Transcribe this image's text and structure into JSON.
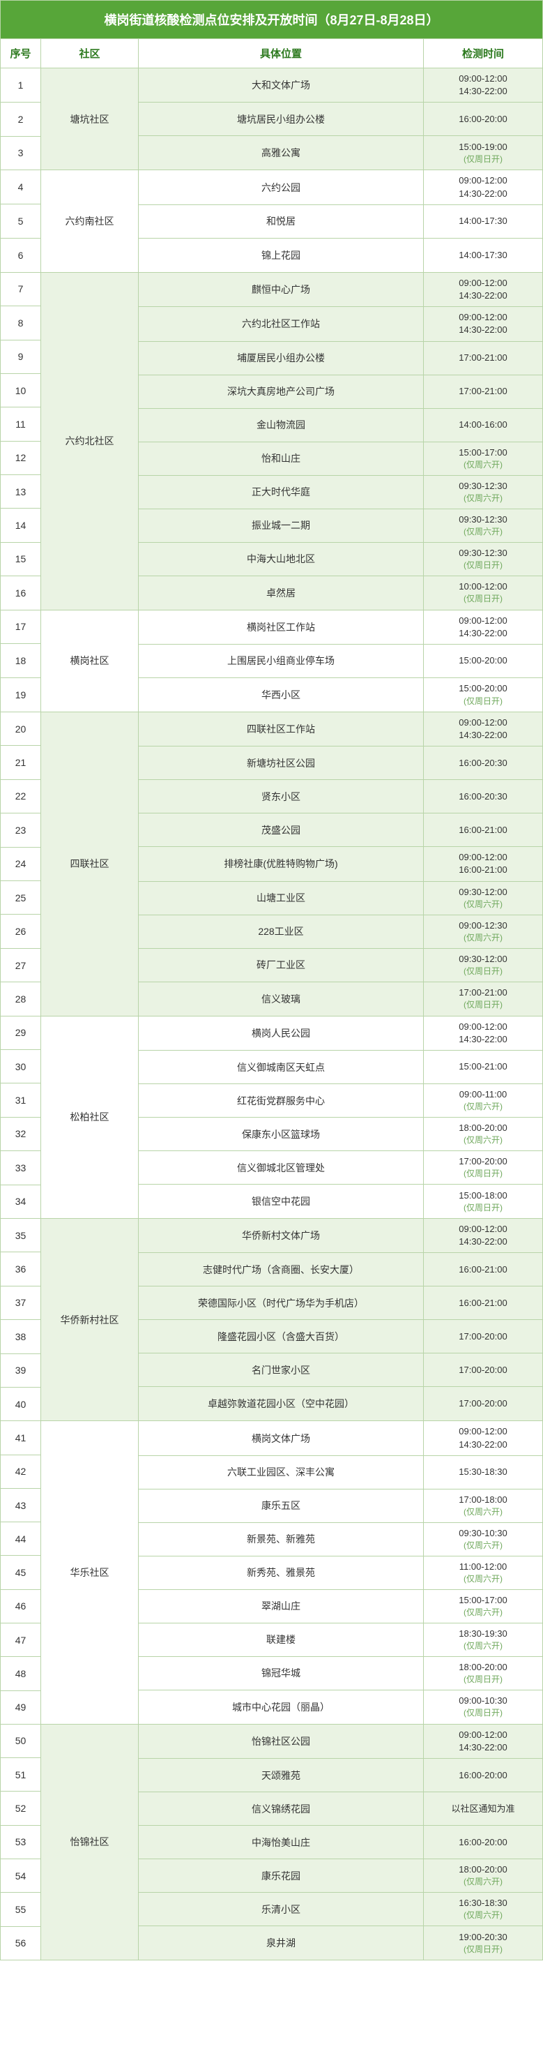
{
  "title": "横岗街道核酸检测点位安排及开放时间（8月27日-8月28日）",
  "colors": {
    "header_bg": "#57a639",
    "header_text": "#ffffff",
    "col_header_text": "#2d7a1f",
    "border": "#b8d4a8",
    "even_bg": "#eaf3e3",
    "odd_bg": "#ffffff",
    "note_text": "#6fa85c"
  },
  "columns": {
    "seq": "序号",
    "community": "社区",
    "location": "具体位置",
    "time": "检测时间"
  },
  "groups": [
    {
      "community": "塘坑社区",
      "bg": "even",
      "rows": [
        {
          "seq": 1,
          "location": "大和文体广场",
          "times": [
            "09:00-12:00",
            "14:30-22:00"
          ]
        },
        {
          "seq": 2,
          "location": "塘坑居民小组办公楼",
          "times": [
            "16:00-20:00"
          ]
        },
        {
          "seq": 3,
          "location": "高雅公寓",
          "times": [
            "15:00-19:00"
          ],
          "note": "(仅周日开)"
        }
      ]
    },
    {
      "community": "六约南社区",
      "bg": "odd",
      "rows": [
        {
          "seq": 4,
          "location": "六约公园",
          "times": [
            "09:00-12:00",
            "14:30-22:00"
          ]
        },
        {
          "seq": 5,
          "location": "和悦居",
          "times": [
            "14:00-17:30"
          ]
        },
        {
          "seq": 6,
          "location": "锦上花园",
          "times": [
            "14:00-17:30"
          ]
        }
      ]
    },
    {
      "community": "六约北社区",
      "bg": "even",
      "rows": [
        {
          "seq": 7,
          "location": "麒恒中心广场",
          "times": [
            "09:00-12:00",
            "14:30-22:00"
          ]
        },
        {
          "seq": 8,
          "location": "六约北社区工作站",
          "times": [
            "09:00-12:00",
            "14:30-22:00"
          ]
        },
        {
          "seq": 9,
          "location": "埔厦居民小组办公楼",
          "times": [
            "17:00-21:00"
          ]
        },
        {
          "seq": 10,
          "location": "深坑大真房地产公司广场",
          "times": [
            "17:00-21:00"
          ]
        },
        {
          "seq": 11,
          "location": "金山物流园",
          "times": [
            "14:00-16:00"
          ]
        },
        {
          "seq": 12,
          "location": "怡和山庄",
          "times": [
            "15:00-17:00"
          ],
          "note": "(仅周六开)"
        },
        {
          "seq": 13,
          "location": "正大时代华庭",
          "times": [
            "09:30-12:30"
          ],
          "note": "(仅周六开)"
        },
        {
          "seq": 14,
          "location": "振业城一二期",
          "times": [
            "09:30-12:30"
          ],
          "note": "(仅周六开)"
        },
        {
          "seq": 15,
          "location": "中海大山地北区",
          "times": [
            "09:30-12:30"
          ],
          "note": "(仅周日开)"
        },
        {
          "seq": 16,
          "location": "卓然居",
          "times": [
            "10:00-12:00"
          ],
          "note": "(仅周日开)"
        }
      ]
    },
    {
      "community": "横岗社区",
      "bg": "odd",
      "rows": [
        {
          "seq": 17,
          "location": "横岗社区工作站",
          "times": [
            "09:00-12:00",
            "14:30-22:00"
          ]
        },
        {
          "seq": 18,
          "location": "上围居民小组商业停车场",
          "times": [
            "15:00-20:00"
          ]
        },
        {
          "seq": 19,
          "location": "华西小区",
          "times": [
            "15:00-20:00"
          ],
          "note": "(仅周日开)"
        }
      ]
    },
    {
      "community": "四联社区",
      "bg": "even",
      "rows": [
        {
          "seq": 20,
          "location": "四联社区工作站",
          "times": [
            "09:00-12:00",
            "14:30-22:00"
          ]
        },
        {
          "seq": 21,
          "location": "新塘坊社区公园",
          "times": [
            "16:00-20:30"
          ]
        },
        {
          "seq": 22,
          "location": "贤东小区",
          "times": [
            "16:00-20:30"
          ]
        },
        {
          "seq": 23,
          "location": "茂盛公园",
          "times": [
            "16:00-21:00"
          ]
        },
        {
          "seq": 24,
          "location": "排榜社康(优胜特购物广场)",
          "times": [
            "09:00-12:00",
            "16:00-21:00"
          ]
        },
        {
          "seq": 25,
          "location": "山塘工业区",
          "times": [
            "09:30-12:00"
          ],
          "note": "(仅周六开)"
        },
        {
          "seq": 26,
          "location": "228工业区",
          "times": [
            "09:00-12:30"
          ],
          "note": "(仅周六开)"
        },
        {
          "seq": 27,
          "location": "砖厂工业区",
          "times": [
            "09:30-12:00"
          ],
          "note": "(仅周日开)"
        },
        {
          "seq": 28,
          "location": "信义玻璃",
          "times": [
            "17:00-21:00"
          ],
          "note": "(仅周日开)"
        }
      ]
    },
    {
      "community": "松柏社区",
      "bg": "odd",
      "rows": [
        {
          "seq": 29,
          "location": "横岗人民公园",
          "times": [
            "09:00-12:00",
            "14:30-22:00"
          ]
        },
        {
          "seq": 30,
          "location": "信义御城南区天虹点",
          "times": [
            "15:00-21:00"
          ]
        },
        {
          "seq": 31,
          "location": "红花街党群服务中心",
          "times": [
            "09:00-11:00"
          ],
          "note": "(仅周六开)"
        },
        {
          "seq": 32,
          "location": "保康东小区篮球场",
          "times": [
            "18:00-20:00"
          ],
          "note": "(仅周六开)"
        },
        {
          "seq": 33,
          "location": "信义御城北区管理处",
          "times": [
            "17:00-20:00"
          ],
          "note": "(仅周日开)"
        },
        {
          "seq": 34,
          "location": "银信空中花园",
          "times": [
            "15:00-18:00"
          ],
          "note": "(仅周日开)"
        }
      ]
    },
    {
      "community": "华侨新村社区",
      "bg": "even",
      "rows": [
        {
          "seq": 35,
          "location": "华侨新村文体广场",
          "times": [
            "09:00-12:00",
            "14:30-22:00"
          ]
        },
        {
          "seq": 36,
          "location": "志健时代广场（含商圈、长安大厦）",
          "times": [
            "16:00-21:00"
          ]
        },
        {
          "seq": 37,
          "location": "荣德国际小区（时代广场华为手机店）",
          "times": [
            "16:00-21:00"
          ]
        },
        {
          "seq": 38,
          "location": "隆盛花园小区（含盛大百货）",
          "times": [
            "17:00-20:00"
          ]
        },
        {
          "seq": 39,
          "location": "名门世家小区",
          "times": [
            "17:00-20:00"
          ]
        },
        {
          "seq": 40,
          "location": "卓越弥敦道花园小区（空中花园）",
          "times": [
            "17:00-20:00"
          ]
        }
      ]
    },
    {
      "community": "华乐社区",
      "bg": "odd",
      "rows": [
        {
          "seq": 41,
          "location": "横岗文体广场",
          "times": [
            "09:00-12:00",
            "14:30-22:00"
          ]
        },
        {
          "seq": 42,
          "location": "六联工业园区、深丰公寓",
          "times": [
            "15:30-18:30"
          ]
        },
        {
          "seq": 43,
          "location": "康乐五区",
          "times": [
            "17:00-18:00"
          ],
          "note": "(仅周六开)"
        },
        {
          "seq": 44,
          "location": "新景苑、新雅苑",
          "times": [
            "09:30-10:30"
          ],
          "note": "(仅周六开)"
        },
        {
          "seq": 45,
          "location": "新秀苑、雅景苑",
          "times": [
            "11:00-12:00"
          ],
          "note": "(仅周六开)"
        },
        {
          "seq": 46,
          "location": "翠湖山庄",
          "times": [
            "15:00-17:00"
          ],
          "note": "(仅周六开)"
        },
        {
          "seq": 47,
          "location": "联建楼",
          "times": [
            "18:30-19:30"
          ],
          "note": "(仅周六开)"
        },
        {
          "seq": 48,
          "location": "锦冠华城",
          "times": [
            "18:00-20:00"
          ],
          "note": "(仅周日开)"
        },
        {
          "seq": 49,
          "location": "城市中心花园（丽晶）",
          "times": [
            "09:00-10:30"
          ],
          "note": "(仅周日开)"
        }
      ]
    },
    {
      "community": "怡锦社区",
      "bg": "even",
      "rows": [
        {
          "seq": 50,
          "location": "怡锦社区公园",
          "times": [
            "09:00-12:00",
            "14:30-22:00"
          ]
        },
        {
          "seq": 51,
          "location": "天颂雅苑",
          "times": [
            "16:00-20:00"
          ]
        },
        {
          "seq": 52,
          "location": "信义锦绣花园",
          "times": [
            "以社区通知为准"
          ]
        },
        {
          "seq": 53,
          "location": "中海怡美山庄",
          "times": [
            "16:00-20:00"
          ]
        },
        {
          "seq": 54,
          "location": "康乐花园",
          "times": [
            "18:00-20:00"
          ],
          "note": "(仅周六开)"
        },
        {
          "seq": 55,
          "location": "乐清小区",
          "times": [
            "16:30-18:30"
          ],
          "note": "(仅周六开)"
        },
        {
          "seq": 56,
          "location": "泉井湖",
          "times": [
            "19:00-20:30"
          ],
          "note": "(仅周日开)"
        }
      ]
    }
  ]
}
